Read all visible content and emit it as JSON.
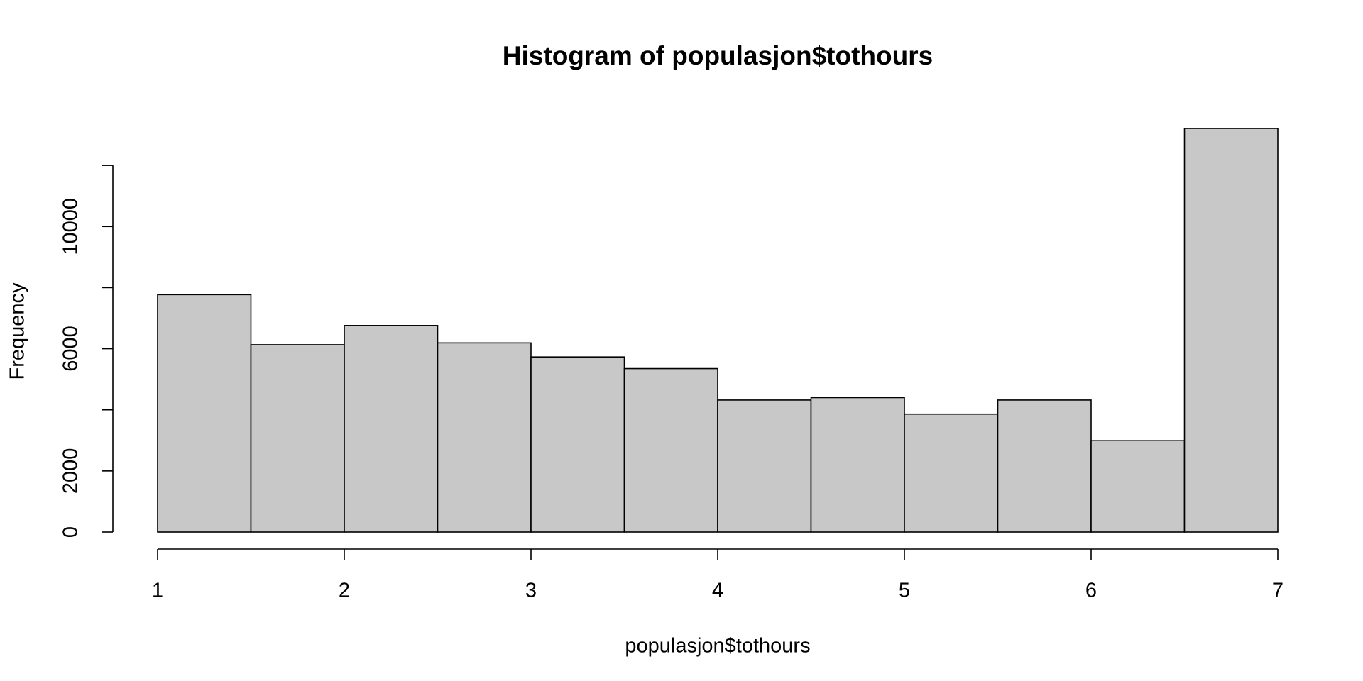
{
  "chart_data": {
    "type": "histogram",
    "title": "Histogram of populasjon$tothours",
    "x_label": "populasjon$tothours",
    "y_label": "Frequency",
    "bins": [
      1,
      1.5,
      2,
      2.5,
      3,
      3.5,
      4,
      4.5,
      5,
      5.5,
      6,
      6.5,
      7
    ],
    "values": [
      7770,
      6130,
      6760,
      6190,
      5730,
      5350,
      4320,
      4400,
      3860,
      4320,
      2990,
      13210
    ],
    "color": "#c8c8c8",
    "xlim": [
      1,
      7
    ],
    "xticks": [
      1,
      2,
      3,
      4,
      5,
      6,
      7
    ],
    "ylim": [
      0,
      13210
    ],
    "yticks": [
      0,
      2000,
      {
        "value": 4000,
        "label": null
      },
      6000,
      {
        "value": 8000,
        "label": null
      },
      10000,
      {
        "value": 12000,
        "label": null
      }
    ]
  }
}
